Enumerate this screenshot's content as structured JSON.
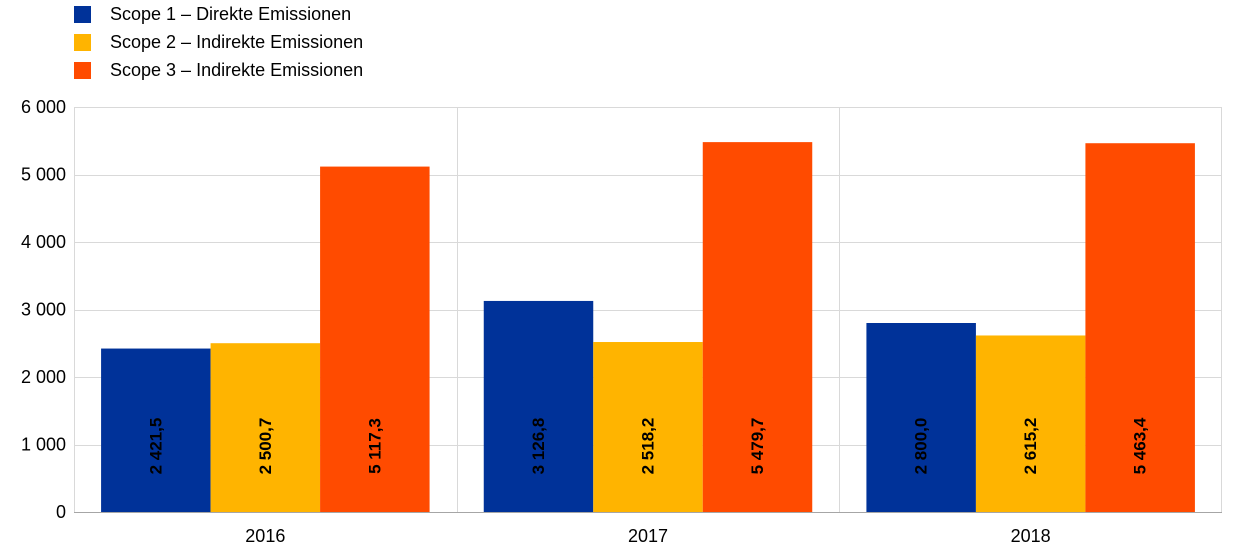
{
  "colors": {
    "scope1": "#003299",
    "scope2": "#FFB400",
    "scope3": "#FF4B00",
    "grid": "#d9d9d9",
    "axis": "#a6a6a6"
  },
  "chart_data": {
    "type": "bar",
    "title": "",
    "xlabel": "",
    "ylabel": "",
    "ylim": [
      0,
      6000
    ],
    "yticks": [
      0,
      1000,
      2000,
      3000,
      4000,
      5000,
      6000
    ],
    "ytick_labels": [
      "0",
      "1 000",
      "2 000",
      "3 000",
      "4 000",
      "5 000",
      "6 000"
    ],
    "categories": [
      "2016",
      "2017",
      "2018"
    ],
    "legend_position": "top-left",
    "grid": true,
    "series": [
      {
        "name": "Scope 1 – Direkte Emissionen",
        "color": "#003299",
        "values": [
          2421.5,
          3126.8,
          2800.0
        ],
        "labels": [
          "2 421,5",
          "3 126,8",
          "2 800,0"
        ]
      },
      {
        "name": "Scope 2 – Indirekte Emissionen",
        "color": "#FFB400",
        "values": [
          2500.7,
          2518.2,
          2615.2
        ],
        "labels": [
          "2 500,7",
          "2 518,2",
          "2 615,2"
        ]
      },
      {
        "name": "Scope 3 – Indirekte Emissionen",
        "color": "#FF4B00",
        "values": [
          5117.3,
          5479.7,
          5463.4
        ],
        "labels": [
          "5 117,3",
          "5 479,7",
          "5 463,4"
        ]
      }
    ]
  }
}
